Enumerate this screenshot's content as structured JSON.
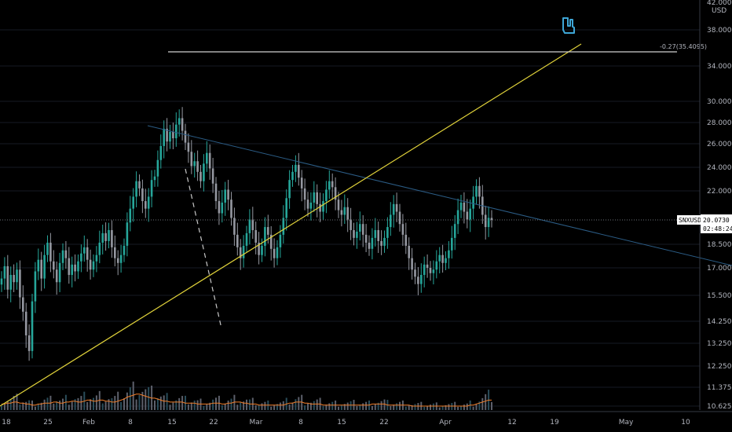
{
  "chart_data": {
    "type": "candlestick",
    "symbol": "SNXUSD",
    "price_axis": {
      "unit_label": "USD",
      "top_label": "42.0000",
      "ticks": [
        "38.0000",
        "34.0000",
        "30.0000",
        "28.0000",
        "26.0000",
        "24.0000",
        "22.0000",
        "18.5000",
        "17.0000",
        "15.5000",
        "14.2500",
        "13.2500",
        "12.2500",
        "11.3750",
        "10.6250"
      ],
      "log_scale": true,
      "range": [
        10.45,
        43.0
      ]
    },
    "time_axis": {
      "labels": [
        "18",
        "25",
        "Feb",
        "8",
        "15",
        "22",
        "Mar",
        "8",
        "15",
        "22",
        "Apr",
        "12",
        "19",
        "May",
        "10"
      ]
    },
    "last_price": {
      "value": "20.0730",
      "countdown": "02:48:24",
      "symbol": "SNXUSD"
    },
    "fib_level": {
      "label": "-0.27(35.4095)",
      "value": 35.4095
    },
    "colors": {
      "up": "#26a69a",
      "down": "#9598a1",
      "volume_ma": "#f07c28",
      "trendline": "#e0d23a",
      "desc_line": "#2b5c85",
      "fib": "#cfcfcf",
      "grid": "#161a25"
    },
    "series": [
      {
        "name": "close",
        "values": [
          16.4,
          17.1,
          15.8,
          16.6,
          16.2,
          16.9,
          15.4,
          14.7,
          13.6,
          12.9,
          15.2,
          16.8,
          17.5,
          16.4,
          17.8,
          18.6,
          17.4,
          16.9,
          16.2,
          17.3,
          18.1,
          17.6,
          16.6,
          17.2,
          16.8,
          17.4,
          17.9,
          18.3,
          17.5,
          16.9,
          17.4,
          17.8,
          18.6,
          19.2,
          18.7,
          19.4,
          18.3,
          17.6,
          17.3,
          17.8,
          18.4,
          19.9,
          20.8,
          21.6,
          22.8,
          22.2,
          21.3,
          20.8,
          21.6,
          22.9,
          23.2,
          24.6,
          25.8,
          27.4,
          26.2,
          27.1,
          26.5,
          27.8,
          28.4,
          27.2,
          26.1,
          25.3,
          24.1,
          24.5,
          23.6,
          22.8,
          24.3,
          25.2,
          23.9,
          22.6,
          21.3,
          20.5,
          21.2,
          22.1,
          21.4,
          20.2,
          19.1,
          18.3,
          17.6,
          18.4,
          19.2,
          20.1,
          19.4,
          18.6,
          17.8,
          18.4,
          19.6,
          19.1,
          18.2,
          17.6,
          18.3,
          19.1,
          20.2,
          21.5,
          22.9,
          23.6,
          24.2,
          23.1,
          22.2,
          21.4,
          20.8,
          21.2,
          21.9,
          21.1,
          20.6,
          21.3,
          22.1,
          22.8,
          22.3,
          21.4,
          20.7,
          20.4,
          20.9,
          20.1,
          19.4,
          18.9,
          19.3,
          19.8,
          19.1,
          18.6,
          18.2,
          18.9,
          19.4,
          18.7,
          18.4,
          18.9,
          19.6,
          20.4,
          21.1,
          20.6,
          19.8,
          19.1,
          18.4,
          17.6,
          16.9,
          16.5,
          16.1,
          16.6,
          17.2,
          17.0,
          16.7,
          16.9,
          17.4,
          17.8,
          17.3,
          17.6,
          18.1,
          18.9,
          19.8,
          20.7,
          21.2,
          20.6,
          20.1,
          20.8,
          21.6,
          22.4,
          21.6,
          20.4,
          19.6,
          20.2,
          20.07
        ]
      },
      {
        "name": "Volume MA",
        "values": [
          0.06,
          0.06,
          0.07,
          0.07,
          0.08,
          0.08,
          0.07,
          0.07,
          0.06,
          0.06,
          0.05,
          0.05,
          0.06,
          0.06,
          0.07,
          0.07,
          0.07,
          0.08,
          0.08,
          0.07,
          0.07,
          0.08,
          0.08,
          0.09,
          0.09,
          0.08,
          0.08,
          0.09,
          0.1,
          0.1,
          0.09,
          0.09,
          0.1,
          0.1,
          0.09,
          0.09,
          0.08,
          0.08,
          0.09,
          0.1,
          0.11,
          0.13,
          0.14,
          0.15,
          0.16,
          0.16,
          0.15,
          0.14,
          0.13,
          0.12,
          0.12,
          0.11,
          0.1,
          0.09,
          0.09,
          0.08,
          0.08,
          0.08,
          0.08,
          0.08,
          0.07,
          0.07,
          0.07,
          0.07,
          0.06,
          0.06,
          0.06,
          0.06,
          0.06,
          0.07,
          0.07,
          0.07,
          0.06,
          0.06,
          0.07,
          0.07,
          0.08,
          0.08,
          0.08,
          0.07,
          0.07,
          0.06,
          0.06,
          0.06,
          0.05,
          0.05,
          0.05,
          0.05,
          0.05,
          0.05,
          0.05,
          0.05,
          0.05,
          0.06,
          0.07,
          0.07,
          0.08,
          0.08,
          0.08,
          0.07,
          0.07,
          0.06,
          0.06,
          0.06,
          0.06,
          0.05,
          0.05,
          0.05,
          0.05,
          0.05,
          0.05,
          0.05,
          0.05,
          0.05,
          0.05,
          0.05,
          0.05,
          0.05,
          0.05,
          0.05,
          0.05,
          0.06,
          0.06,
          0.06,
          0.06,
          0.06,
          0.05,
          0.05,
          0.05,
          0.05,
          0.05,
          0.05,
          0.05,
          0.05,
          0.04,
          0.04,
          0.04,
          0.04,
          0.04,
          0.04,
          0.04,
          0.04,
          0.04,
          0.04,
          0.04,
          0.04,
          0.04,
          0.04,
          0.04,
          0.04,
          0.04,
          0.04,
          0.04,
          0.05,
          0.05,
          0.06,
          0.07,
          0.08,
          0.09,
          0.1,
          0.1,
          0.1,
          0.09,
          0.09,
          0.08,
          0.08
        ]
      }
    ]
  },
  "icons": {
    "pointer": "hand-pointer-icon"
  }
}
